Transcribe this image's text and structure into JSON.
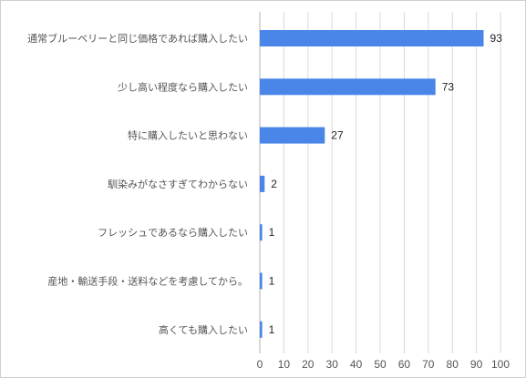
{
  "chart_data": {
    "type": "bar",
    "orientation": "horizontal",
    "categories": [
      "通常ブルーベリーと同じ価格であれば購入したい",
      "少し高い程度なら購入したい",
      "特に購入したいと思わない",
      "馴染みがなさすぎてわからない",
      "フレッシュであるなら購入したい",
      "産地・輸送手段・送料などを考慮してから。",
      "高くても購入したい"
    ],
    "values": [
      93,
      73,
      27,
      2,
      1,
      1,
      1
    ],
    "xlim": [
      0,
      100
    ],
    "xticks": [
      0,
      10,
      20,
      30,
      40,
      50,
      60,
      70,
      80,
      90,
      100
    ],
    "grid": true,
    "legend": "none",
    "bar_color": "#4a86e8",
    "data_labels": true
  }
}
